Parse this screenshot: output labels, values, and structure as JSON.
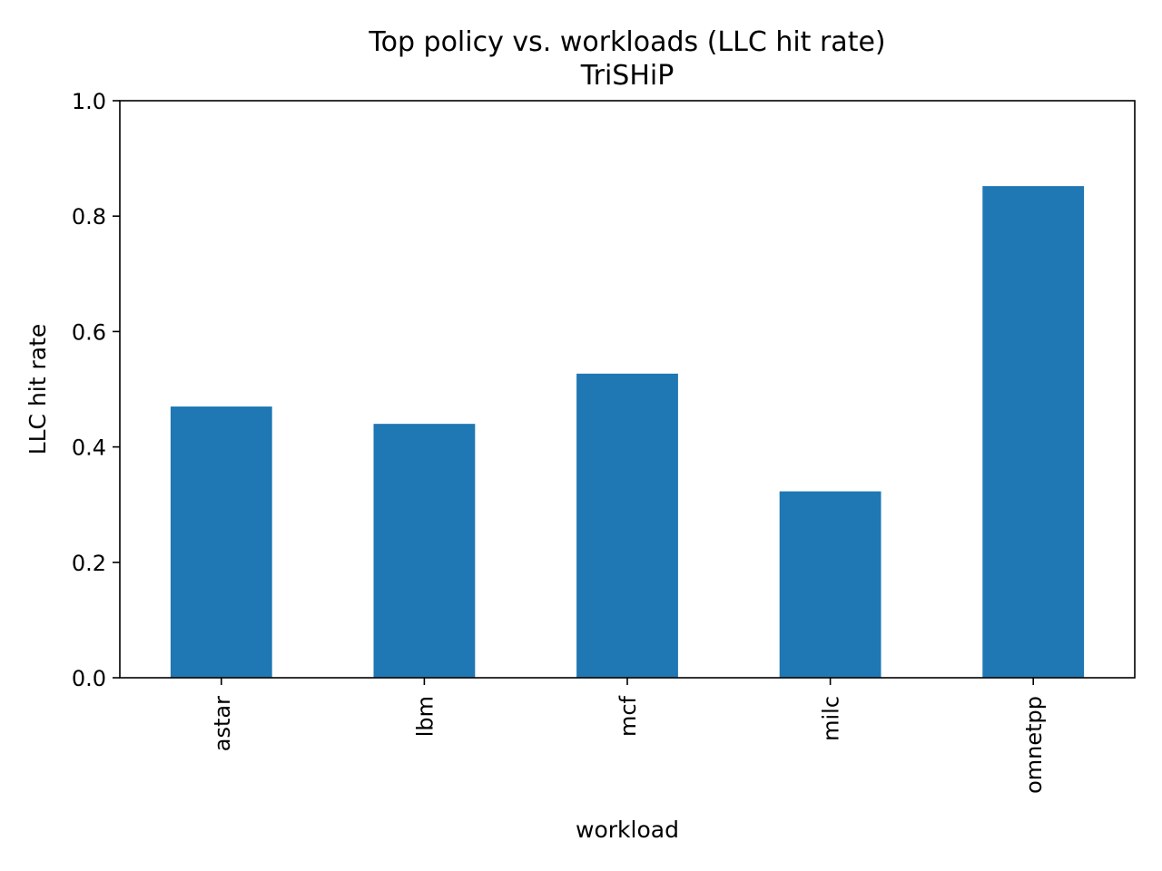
{
  "chart_data": {
    "type": "bar",
    "title": "Top policy vs. workloads (LLC hit rate)",
    "subtitle": "TriSHiP",
    "xlabel": "workload",
    "ylabel": "LLC hit rate",
    "categories": [
      "astar",
      "lbm",
      "mcf",
      "milc",
      "omnetpp"
    ],
    "values": [
      0.47,
      0.44,
      0.527,
      0.323,
      0.852
    ],
    "ylim": [
      0,
      1.0
    ],
    "yticks": [
      0.0,
      0.2,
      0.4,
      0.6,
      0.8,
      1.0
    ],
    "ytick_labels": [
      "0.0",
      "0.2",
      "0.4",
      "0.6",
      "0.8",
      "1.0"
    ],
    "grid": false,
    "bar_color": "#1f77b4"
  }
}
